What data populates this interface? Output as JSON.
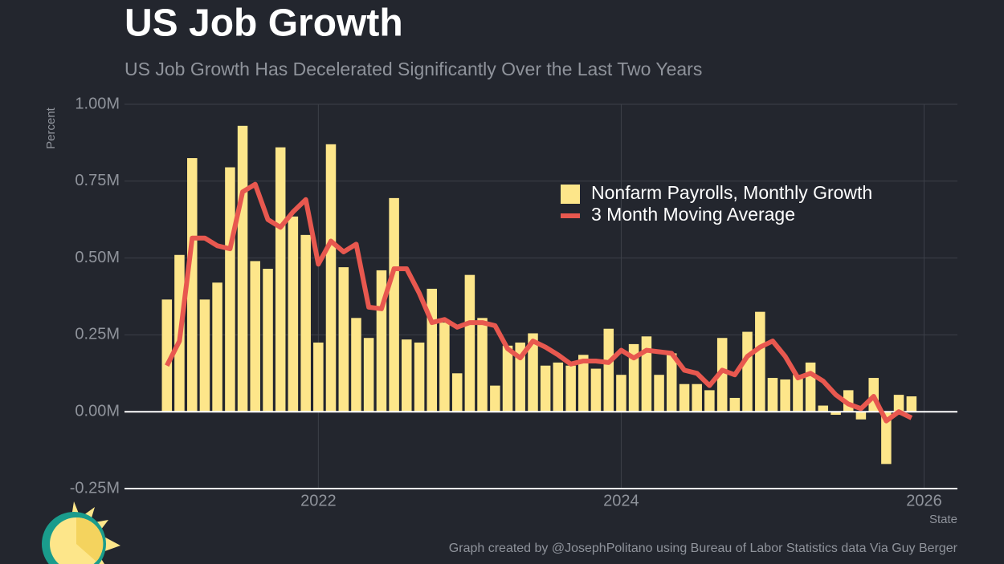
{
  "chart_data": {
    "type": "bar_line",
    "title": "US Job Growth",
    "subtitle": "US Job Growth Has Decelerated Significantly Over the Last Two Years",
    "y_label": "Percent",
    "x_label": "State",
    "credit": "Graph created by @JosephPolitano using Bureau of Labor Statistics data Via Guy Berger",
    "x": [
      2021.0,
      2021.083,
      2021.167,
      2021.25,
      2021.333,
      2021.417,
      2021.5,
      2021.583,
      2021.667,
      2021.75,
      2021.833,
      2021.917,
      2022.0,
      2022.083,
      2022.167,
      2022.25,
      2022.333,
      2022.417,
      2022.5,
      2022.583,
      2022.667,
      2022.75,
      2022.833,
      2022.917,
      2023.0,
      2023.083,
      2023.167,
      2023.25,
      2023.333,
      2023.417,
      2023.5,
      2023.583,
      2023.667,
      2023.75,
      2023.833,
      2023.917,
      2024.0,
      2024.083,
      2024.167,
      2024.25,
      2024.333,
      2024.417,
      2024.5,
      2024.583,
      2024.667,
      2024.75,
      2024.833,
      2024.917,
      2025.0,
      2025.083,
      2025.167,
      2025.25,
      2025.333,
      2025.417,
      2025.5,
      2025.583,
      2025.667,
      2025.75,
      2025.833,
      2025.917
    ],
    "series": [
      {
        "name": "Nonfarm Payrolls, Monthly Growth",
        "color": "#fde68a",
        "kind": "bar",
        "values": [
          0.365,
          0.51,
          0.825,
          0.365,
          0.42,
          0.795,
          0.93,
          0.49,
          0.465,
          0.86,
          0.635,
          0.575,
          0.225,
          0.87,
          0.47,
          0.305,
          0.24,
          0.46,
          0.695,
          0.235,
          0.225,
          0.4,
          0.29,
          0.125,
          0.445,
          0.305,
          0.085,
          0.215,
          0.225,
          0.255,
          0.15,
          0.16,
          0.15,
          0.185,
          0.14,
          0.27,
          0.12,
          0.22,
          0.245,
          0.12,
          0.19,
          0.09,
          0.09,
          0.07,
          0.24,
          0.045,
          0.26,
          0.325,
          0.11,
          0.105,
          0.12,
          0.16,
          0.02,
          -0.01,
          0.07,
          -0.025,
          0.11,
          -0.17,
          0.055,
          0.05
        ]
      },
      {
        "name": "3 Month Moving Average",
        "color": "#e8584f",
        "kind": "line",
        "values": [
          0.15,
          0.23,
          0.565,
          0.565,
          0.54,
          0.53,
          0.715,
          0.74,
          0.625,
          0.6,
          0.65,
          0.69,
          0.48,
          0.555,
          0.52,
          0.545,
          0.34,
          0.335,
          0.465,
          0.465,
          0.385,
          0.29,
          0.3,
          0.275,
          0.29,
          0.29,
          0.28,
          0.205,
          0.175,
          0.23,
          0.21,
          0.185,
          0.155,
          0.165,
          0.165,
          0.16,
          0.2,
          0.175,
          0.2,
          0.195,
          0.19,
          0.135,
          0.125,
          0.085,
          0.135,
          0.12,
          0.18,
          0.21,
          0.23,
          0.18,
          0.11,
          0.125,
          0.1,
          0.055,
          0.025,
          0.01,
          0.05,
          -0.03,
          0,
          -0.02
        ]
      }
    ],
    "xlim": [
      2020.72,
      2026.22
    ],
    "xticks": [
      2022,
      2024,
      2026
    ],
    "ylim": [
      -0.25,
      1.0
    ],
    "yticks": [
      {
        "value": -0.25,
        "label": "-0.25M"
      },
      {
        "value": 0,
        "label": "0.00M"
      },
      {
        "value": 0.25,
        "label": "0.25M"
      },
      {
        "value": 0.5,
        "label": "0.50M"
      },
      {
        "value": 0.75,
        "label": "0.75M"
      },
      {
        "value": 1.0,
        "label": "1.00M"
      }
    ],
    "grid": true,
    "legend": "upper right"
  }
}
